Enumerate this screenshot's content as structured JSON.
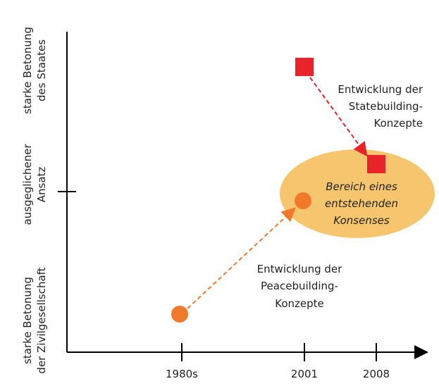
{
  "y_axis": {
    "labels": [
      [
        "starke Betonung",
        "des Staates"
      ],
      [
        "ausgeglichener",
        "Ansatz"
      ],
      [
        "starke Betonung",
        "der Zivilgesellschaft"
      ]
    ]
  },
  "x_axis": {
    "labels": [
      "1980s",
      "2001",
      "2008"
    ]
  },
  "annotations": {
    "statebuilding": [
      "Entwicklung der",
      "Statebuilding-",
      "Konzepte"
    ],
    "consensus": [
      "Bereich eines",
      "entstehenden",
      "Konsenses"
    ],
    "peacebuilding": [
      "Entwicklung der",
      "Peacebuilding-",
      "Konzepte"
    ]
  }
}
